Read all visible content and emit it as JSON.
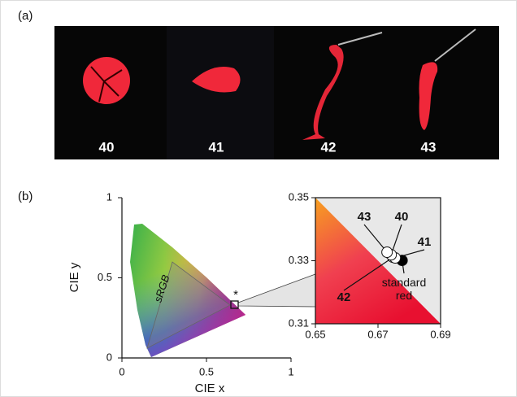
{
  "figure": {
    "panel_a": {
      "label": "(a)",
      "photo_labels": [
        "40",
        "41",
        "42",
        "43"
      ]
    },
    "panel_b": {
      "label": "(b)"
    }
  },
  "chart_data": [
    {
      "type": "cie",
      "xlabel": "CIE x",
      "ylabel": "CIE y",
      "xlim": [
        0,
        1
      ],
      "ylim": [
        0,
        1
      ],
      "xticks": [
        0,
        0.5,
        1
      ],
      "yticks": [
        0,
        0.5,
        1
      ],
      "annotations": [
        "sRGB",
        "*"
      ]
    },
    {
      "type": "scatter",
      "xlim": [
        0.65,
        0.69
      ],
      "ylim": [
        0.31,
        0.35
      ],
      "xticks": [
        0.65,
        0.67,
        0.69
      ],
      "yticks": [
        0.31,
        0.33,
        0.35
      ],
      "series": [
        {
          "name": "43",
          "color": "#ffffff",
          "x": [
            0.6729
          ],
          "values": [
            0.3327
          ]
        },
        {
          "name": "40",
          "color": "#ffffff",
          "x": [
            0.6742
          ],
          "values": [
            0.3319
          ]
        },
        {
          "name": "41",
          "color": "#ffffff",
          "x": [
            0.6755
          ],
          "values": [
            0.3309
          ]
        },
        {
          "name": "42",
          "color": "#ffffff",
          "x": [
            0.6748
          ],
          "values": [
            0.3311
          ]
        },
        {
          "name": "standard red",
          "color": "#000000",
          "x": [
            0.6777
          ],
          "values": [
            0.3301
          ]
        }
      ]
    }
  ]
}
